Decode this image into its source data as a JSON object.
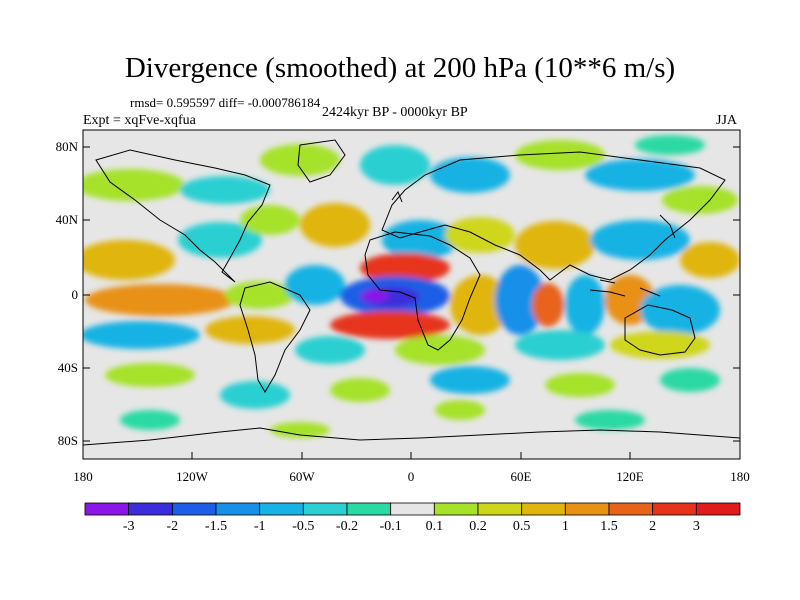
{
  "title": "Divergence (smoothed) at 200 hPa (10**6 m/s)",
  "stats_text": "rmsd= 0.595597 diff= -0.000786184",
  "experiment_text": "Expt = xqFve-xqfua",
  "period_text": "2424kyr BP - 0000kyr BP",
  "season_text": "JJA",
  "map": {
    "projection": "cylindrical equidistant",
    "lon_range": [
      -180,
      180
    ],
    "lat_range": [
      -90,
      90
    ],
    "y_axis_labels": [
      "80N",
      "40N",
      "0",
      "40S",
      "80S"
    ],
    "x_axis_labels": [
      "180",
      "120W",
      "60W",
      "0",
      "60E",
      "120E",
      "180"
    ],
    "colors": {
      "neutral": "#e6e6e6",
      "coast": "#000000"
    }
  },
  "colorbar": {
    "labels": [
      "-3",
      "-2",
      "-1.5",
      "-1",
      "-0.5",
      "-0.2",
      "-0.1",
      "0.1",
      "0.2",
      "0.5",
      "1",
      "1.5",
      "2",
      "3"
    ],
    "colors": [
      "#8a16e8",
      "#3c2ddc",
      "#1e5ee6",
      "#1790e8",
      "#18b2e4",
      "#2ccfd2",
      "#2ad9a4",
      "#e6e6e6",
      "#a6e22a",
      "#cfd61a",
      "#e0b50f",
      "#e89115",
      "#e8631a",
      "#e6341c",
      "#e01b1b"
    ]
  }
}
